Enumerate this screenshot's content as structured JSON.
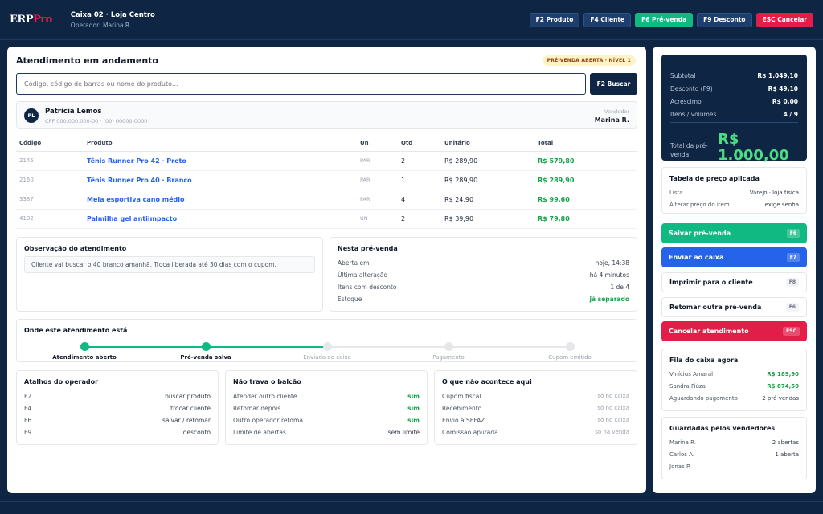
{
  "topbar": {
    "logo_main": "ERP",
    "logo_accent": "Pro",
    "title": "Caixa 02 · Loja Centro",
    "operator": "Operador: Marina R.",
    "buttons": [
      "F2 Produto",
      "F4 Cliente",
      "F6 Pré-venda",
      "F9 Desconto",
      "ESC Cancelar"
    ]
  },
  "colors": {
    "brand_navy": "#0f2544",
    "accent_green": "#10b981",
    "accent_red": "#e11d48",
    "accent_blue": "#2563eb"
  },
  "header": {
    "title": "Atendimento em andamento",
    "badge": "PRÉ-VENDA ABERTA · NÍVEL 1"
  },
  "search": {
    "placeholder": "Código, código de barras ou nome do produto...",
    "button": "F2 Buscar"
  },
  "client": {
    "initials": "PL",
    "name": "Patrícia Lemos",
    "doc": "CPF 000.000.000-00 · (00) 00000-0000",
    "seller_label": "Vendedor",
    "seller": "Marina R."
  },
  "items": {
    "headers": [
      "Código",
      "Produto",
      "Un",
      "Qtd",
      "Unitário",
      "Total"
    ],
    "rows": [
      {
        "code": "2145",
        "product": "Tênis Runner Pro 42 · Preto",
        "un": "PAR",
        "qty": "2",
        "unit": "R$ 289,90",
        "total": "R$ 579,80"
      },
      {
        "code": "2160",
        "product": "Tênis Runner Pro 40 · Branco",
        "un": "PAR",
        "qty": "1",
        "unit": "R$ 289,90",
        "total": "R$ 289,90"
      },
      {
        "code": "3387",
        "product": "Meia esportiva cano médio",
        "un": "PAR",
        "qty": "4",
        "unit": "R$ 24,90",
        "total": "R$ 99,60"
      },
      {
        "code": "4102",
        "product": "Palmilha gel antiimpacto",
        "un": "UN",
        "qty": "2",
        "unit": "R$ 39,90",
        "total": "R$ 79,80"
      }
    ]
  },
  "observation": {
    "title": "Observação do atendimento",
    "text": "Cliente vai buscar o 40 branco amanhã. Troca liberada até 30 dias com o cupom."
  },
  "presale": {
    "title": "Nesta pré-venda",
    "rows": [
      {
        "k": "Aberta em",
        "v": "hoje, 14:38"
      },
      {
        "k": "Última alteração",
        "v": "há 4 minutos"
      },
      {
        "k": "Itens com desconto",
        "v": "1 de 4"
      },
      {
        "k": "Estoque",
        "v": "já separado"
      }
    ]
  },
  "progress": {
    "title": "Onde este atendimento está",
    "steps": [
      "Atendimento aberto",
      "Pré-venda salva",
      "Enviada ao caixa",
      "Pagamento",
      "Cupom emitido"
    ],
    "completed": 2
  },
  "shortcuts": {
    "title": "Atalhos do operador",
    "rows": [
      {
        "k": "F2",
        "v": "buscar produto"
      },
      {
        "k": "F4",
        "v": "trocar cliente"
      },
      {
        "k": "F6",
        "v": "salvar / retomar"
      },
      {
        "k": "F9",
        "v": "desconto"
      }
    ]
  },
  "nolock": {
    "title": "Não trava o balcão",
    "rows": [
      {
        "k": "Atender outro cliente",
        "v": "sim"
      },
      {
        "k": "Retomar depois",
        "v": "sim"
      },
      {
        "k": "Outro operador retoma",
        "v": "sim"
      },
      {
        "k": "Limite de abertas",
        "v": "sem limite"
      }
    ]
  },
  "nothappen": {
    "title": "O que não acontece aqui",
    "rows": [
      {
        "k": "Cupom fiscal",
        "v": "só no caixa"
      },
      {
        "k": "Recebimento",
        "v": "só no caixa"
      },
      {
        "k": "Envio à SEFAZ",
        "v": "só no caixa"
      },
      {
        "k": "Comissão apurada",
        "v": "só na venda"
      }
    ]
  },
  "summary": {
    "rows": [
      {
        "k": "Subtotal",
        "v": "R$ 1.049,10"
      },
      {
        "k": "Desconto (F9)",
        "v": "R$ 49,10"
      },
      {
        "k": "Acréscimo",
        "v": "R$ 0,00"
      },
      {
        "k": "Itens / volumes",
        "v": "4 / 9"
      }
    ],
    "total_label": "Total da pré-venda",
    "total": "R$ 1.000,00"
  },
  "price_table": {
    "title": "Tabela de preço aplicada",
    "rows": [
      {
        "k": "Lista",
        "v": "Varejo · loja física"
      },
      {
        "k": "Alterar preço do item",
        "v": "exige senha"
      }
    ]
  },
  "actions": [
    {
      "label": "Salvar pré-venda",
      "key": "F6"
    },
    {
      "label": "Enviar ao caixa",
      "key": "F7"
    },
    {
      "label": "Imprimir para o cliente",
      "key": "F8"
    },
    {
      "label": "Retomar outra pré-venda",
      "key": "F6"
    },
    {
      "label": "Cancelar atendimento",
      "key": "ESC"
    }
  ],
  "queue": {
    "title": "Fila do caixa agora",
    "rows": [
      {
        "k": "Vinícius Amaral",
        "v": "R$ 189,90"
      },
      {
        "k": "Sandra Fiúza",
        "v": "R$ 874,50"
      },
      {
        "k": "Aguardando pagamento",
        "v": "2 pré-vendas"
      }
    ]
  },
  "saved": {
    "title": "Guardadas pelos vendedores",
    "rows": [
      {
        "k": "Marina R.",
        "v": "2 abertas"
      },
      {
        "k": "Carlos A.",
        "v": "1 aberta"
      },
      {
        "k": "Jonas P.",
        "v": "—"
      }
    ]
  }
}
